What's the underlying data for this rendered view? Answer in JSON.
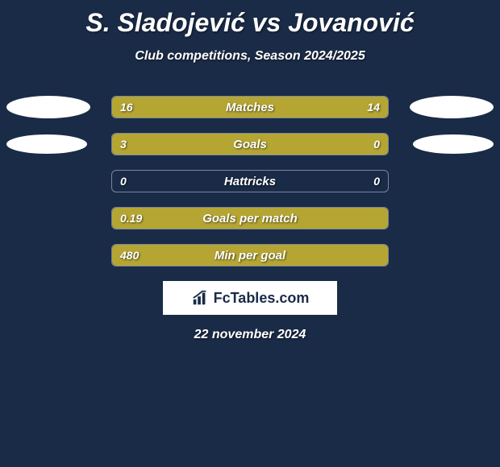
{
  "background_color": "#1a2b47",
  "accent_left": "#b5a633",
  "accent_right": "#b5a633",
  "track_border": "#7a8699",
  "ellipse_color": "#ffffff",
  "title": "S. Sladojević vs Jovanović",
  "subtitle": "Club competitions, Season 2024/2025",
  "footer_date": "22 november 2024",
  "logo_text": "FcTables.com",
  "rows": [
    {
      "label": "Matches",
      "left_value": "16",
      "right_value": "14",
      "left_num": 16,
      "right_num": 14,
      "left_ellipse_w": 104,
      "left_ellipse_h": 28,
      "right_ellipse_w": 104,
      "right_ellipse_h": 28,
      "show_ellipses": true
    },
    {
      "label": "Goals",
      "left_value": "3",
      "right_value": "0",
      "left_num": 3,
      "right_num": 0,
      "left_ellipse_w": 100,
      "left_ellipse_h": 24,
      "right_ellipse_w": 100,
      "right_ellipse_h": 24,
      "show_ellipses": true
    },
    {
      "label": "Hattricks",
      "left_value": "0",
      "right_value": "0",
      "left_num": 0,
      "right_num": 0,
      "show_ellipses": false
    },
    {
      "label": "Goals per match",
      "left_value": "0.19",
      "right_value": "",
      "left_num": 0.19,
      "right_num": 0,
      "show_ellipses": false
    },
    {
      "label": "Min per goal",
      "left_value": "480",
      "right_value": "",
      "left_num": 480,
      "right_num": 0,
      "show_ellipses": false
    }
  ],
  "bar_track_width": 344,
  "chart_font_size": 15,
  "value_font_size": 14
}
